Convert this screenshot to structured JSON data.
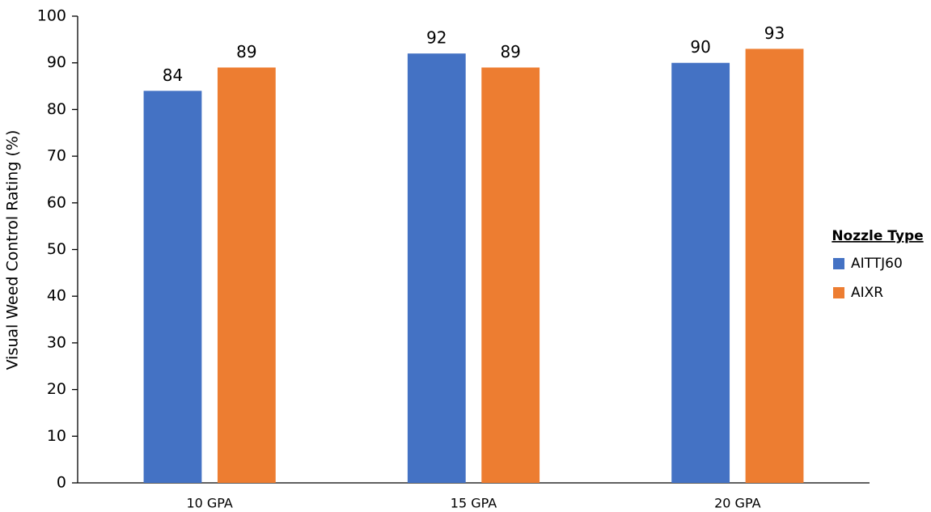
{
  "chart_data": {
    "type": "bar",
    "y_label": "Visual Weed Control Rating (%)",
    "categories": [
      "10 GPA",
      "15 GPA",
      "20 GPA"
    ],
    "series": [
      {
        "name": "AITTJ60",
        "color": "#4472c4",
        "values": [
          84,
          92,
          90
        ]
      },
      {
        "name": "AIXR",
        "color": "#ed7d31",
        "values": [
          89,
          89,
          93
        ]
      }
    ],
    "legend_title": "Nozzle Type",
    "legend": "right",
    "ylim": [
      0,
      100
    ],
    "yticks": [
      0,
      10,
      20,
      30,
      40,
      50,
      60,
      70,
      80,
      90,
      100
    ],
    "grid": false
  }
}
